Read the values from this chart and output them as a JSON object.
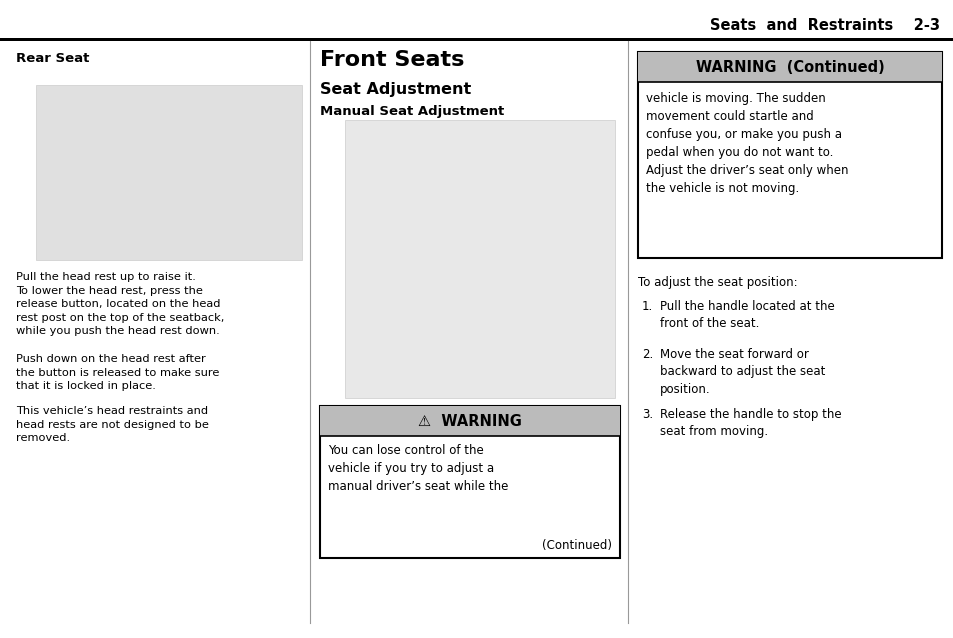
{
  "page_bg": "#ffffff",
  "header_text": "Seats  and  Restraints",
  "header_page": "2-3",
  "col1_header": "Rear Seat",
  "col2_header": "Front Seats",
  "col2_sub1": "Seat Adjustment",
  "col2_sub2": "Manual Seat Adjustment",
  "col1_body1": "Pull the head rest up to raise it.\nTo lower the head rest, press the\nrelease button, located on the head\nrest post on the top of the seatback,\nwhile you push the head rest down.",
  "col1_body2": "Push down on the head rest after\nthe button is released to make sure\nthat it is locked in place.",
  "col1_body3": "This vehicle’s head restraints and\nhead rests are not designed to be\nremoved.",
  "warning1_header": "⚠  WARNING",
  "warning1_body": "You can lose control of the\nvehicle if you try to adjust a\nmanual driver’s seat while the",
  "warning1_continued": "(Continued)",
  "warning2_header": "WARNING  (Continued)",
  "warning2_body": "vehicle is moving. The sudden\nmovement could startle and\nconfuse you, or make you push a\npedal when you do not want to.\nAdjust the driver’s seat only when\nthe vehicle is not moving.",
  "col3_intro": "To adjust the seat position:",
  "col3_item1a": "Pull the handle located at the",
  "col3_item1b": "front of the seat.",
  "col3_item2a": "Move the seat forward or",
  "col3_item2b": "backward to adjust the seat",
  "col3_item2c": "position.",
  "col3_item3a": "Release the handle to stop the",
  "col3_item3b": "seat from moving.",
  "warning_header_bg": "#bbbbbb",
  "warning_border": "#000000",
  "text_color": "#000000",
  "img1_color": "#e0e0e0",
  "img2_color": "#e8e8e8"
}
